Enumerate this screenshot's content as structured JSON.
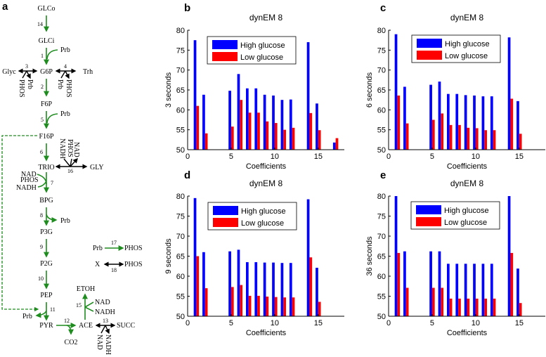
{
  "panel_labels": {
    "a": "a",
    "b": "b",
    "c": "c",
    "d": "d",
    "e": "e"
  },
  "pathway": {
    "colors": {
      "reaction": "#1e8c1e",
      "reversible": "#000000"
    },
    "nodes": {
      "GLCo": "GLCo",
      "GLCi": "GLCi",
      "G6P": "G6P",
      "Glyc": "Glyc",
      "Trh": "Trh",
      "F6P": "F6P",
      "F16P": "F16P",
      "TRIO": "TRIO",
      "GLY": "GLY",
      "BPG": "BPG",
      "P3G": "P3G",
      "P2G": "P2G",
      "PEP": "PEP",
      "PYR": "PYR",
      "ACE": "ACE",
      "ETOH": "ETOH",
      "SUCC": "SUCC",
      "CO2": "CO2",
      "X": "X",
      "Prb": "Prb",
      "PHOS": "PHOS",
      "NAD": "NAD",
      "NADH": "NADH"
    },
    "reactions": [
      "1",
      "2",
      "3",
      "4",
      "5",
      "6",
      "7",
      "8",
      "9",
      "10",
      "11",
      "12",
      "13",
      "14",
      "15",
      "16",
      "17",
      "18"
    ]
  },
  "chart_data": [
    {
      "panel": "b",
      "type": "bar",
      "title": "dynEM 8",
      "xlabel": "Coefficients",
      "ylabel": "3 seconds",
      "xlim": [
        0,
        18
      ],
      "ylim": [
        50,
        80
      ],
      "xticks": [
        0,
        5,
        10,
        15
      ],
      "yticks": [
        50,
        55,
        60,
        65,
        70,
        75,
        80
      ],
      "legend_position": "top-center",
      "x": [
        1,
        2,
        5,
        6,
        7,
        8,
        9,
        10,
        11,
        12,
        14,
        15,
        17
      ],
      "series": [
        {
          "name": "High glucose",
          "color": "#0000ff",
          "values": [
            77.5,
            63.8,
            64.8,
            69.0,
            65.4,
            65.4,
            63.8,
            63.6,
            62.5,
            62.6,
            77.0,
            61.6,
            51.8
          ]
        },
        {
          "name": "Low glucose",
          "color": "#ff0000",
          "values": [
            61.0,
            54.1,
            55.8,
            62.5,
            59.3,
            59.3,
            57.1,
            56.7,
            55.0,
            55.5,
            59.2,
            54.9,
            52.9
          ]
        }
      ]
    },
    {
      "panel": "c",
      "type": "bar",
      "title": "dynEM 8",
      "xlabel": "Coefficients",
      "ylabel": "6 seconds",
      "xlim": [
        0,
        18
      ],
      "ylim": [
        50,
        80
      ],
      "xticks": [
        0,
        5,
        10,
        15
      ],
      "yticks": [
        50,
        55,
        60,
        65,
        70,
        75,
        80
      ],
      "legend_position": "top-center",
      "x": [
        1,
        2,
        5,
        6,
        7,
        8,
        9,
        10,
        11,
        12,
        14,
        15
      ],
      "series": [
        {
          "name": "High glucose",
          "color": "#0000ff",
          "values": [
            79.0,
            65.8,
            66.3,
            67.1,
            64.0,
            64.0,
            63.7,
            63.6,
            63.4,
            63.4,
            78.2,
            62.2
          ]
        },
        {
          "name": "Low glucose",
          "color": "#ff0000",
          "values": [
            63.6,
            56.6,
            57.5,
            59.1,
            56.2,
            56.2,
            55.5,
            55.4,
            54.9,
            54.9,
            62.8,
            54.0
          ]
        }
      ]
    },
    {
      "panel": "d",
      "type": "bar",
      "title": "dynEM 8",
      "xlabel": "Coefficients",
      "ylabel": "9 seconds",
      "xlim": [
        0,
        18
      ],
      "ylim": [
        50,
        80
      ],
      "xticks": [
        0,
        5,
        10,
        15
      ],
      "yticks": [
        50,
        55,
        60,
        65,
        70,
        75,
        80
      ],
      "legend_position": "top-center",
      "x": [
        1,
        2,
        5,
        6,
        7,
        8,
        9,
        10,
        11,
        12,
        14,
        15
      ],
      "series": [
        {
          "name": "High glucose",
          "color": "#0000ff",
          "values": [
            79.5,
            66.0,
            66.2,
            66.6,
            63.5,
            63.5,
            63.4,
            63.4,
            63.3,
            63.3,
            79.2,
            62.1
          ]
        },
        {
          "name": "Low glucose",
          "color": "#ff0000",
          "values": [
            65.0,
            57.0,
            57.3,
            57.8,
            55.1,
            55.1,
            54.9,
            54.8,
            54.7,
            54.7,
            64.7,
            53.6
          ]
        }
      ]
    },
    {
      "panel": "e",
      "type": "bar",
      "title": "dynEM 8",
      "xlabel": "Coefficients",
      "ylabel": "36 seconds",
      "xlim": [
        0,
        18
      ],
      "ylim": [
        50,
        80
      ],
      "xticks": [
        0,
        5,
        10,
        15
      ],
      "yticks": [
        50,
        55,
        60,
        65,
        70,
        75,
        80
      ],
      "legend_position": "top-center",
      "x": [
        1,
        2,
        5,
        6,
        7,
        8,
        9,
        10,
        11,
        12,
        14,
        15
      ],
      "series": [
        {
          "name": "High glucose",
          "color": "#0000ff",
          "values": [
            80.0,
            66.2,
            66.2,
            66.2,
            63.1,
            63.1,
            63.1,
            63.1,
            63.1,
            63.1,
            80.0,
            61.9
          ]
        },
        {
          "name": "Low glucose",
          "color": "#ff0000",
          "values": [
            65.8,
            57.1,
            57.1,
            57.1,
            54.4,
            54.4,
            54.4,
            54.4,
            54.4,
            54.4,
            65.8,
            53.3
          ]
        }
      ]
    }
  ]
}
